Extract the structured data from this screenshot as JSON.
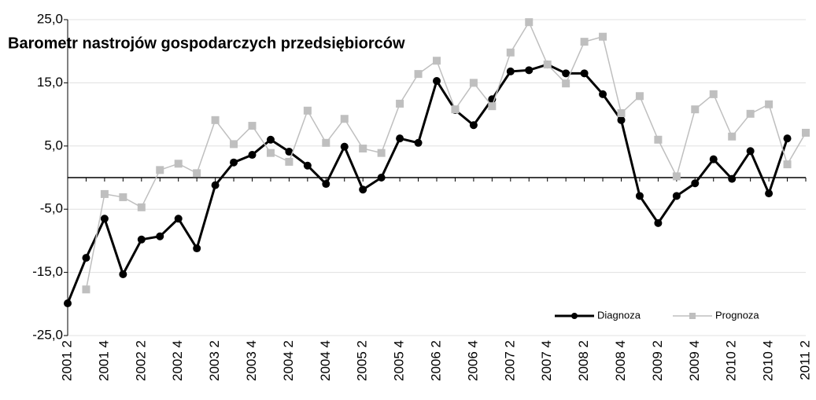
{
  "chart_data": {
    "type": "line",
    "title": "Barometr nastrojów gospodarczych przedsiębiorców",
    "categories": [
      "2001 2",
      null,
      "2001 4",
      null,
      "2002 2",
      null,
      "2002 4",
      null,
      "2003 2",
      null,
      "2003 4",
      null,
      "2004 2",
      null,
      "2004 4",
      null,
      "2005 2",
      null,
      "2005 4",
      null,
      "2006 2",
      null,
      "2006 4",
      null,
      "2007 2",
      null,
      "2007 4",
      null,
      "2008 2",
      null,
      "2008 4",
      null,
      "2009 2",
      null,
      "2009 4",
      null,
      "2010 2",
      null,
      "2010 4",
      null,
      "2011 2"
    ],
    "series": [
      {
        "name": "Diagnoza",
        "color": "#000000",
        "values": [
          -19.9,
          -12.7,
          -6.5,
          -15.3,
          -9.8,
          -9.3,
          -6.5,
          -11.2,
          -1.2,
          2.4,
          3.6,
          6.0,
          4.1,
          1.9,
          -1.0,
          4.9,
          -1.9,
          0.0,
          6.2,
          5.5,
          15.3,
          10.7,
          8.3,
          12.4,
          16.8,
          17.0,
          17.9,
          16.5,
          16.5,
          13.2,
          9.1,
          -2.9,
          -7.2,
          -2.9,
          -0.9,
          2.9,
          -0.2,
          4.2,
          -2.5,
          6.2,
          null
        ]
      },
      {
        "name": "Prognoza",
        "color": "#bfbfbf",
        "values": [
          null,
          -17.7,
          -2.6,
          -3.1,
          -4.7,
          1.2,
          2.2,
          0.7,
          9.1,
          5.3,
          8.2,
          3.9,
          2.5,
          10.6,
          5.5,
          9.3,
          4.6,
          3.9,
          11.7,
          16.4,
          18.5,
          10.8,
          15.0,
          11.3,
          19.8,
          24.6,
          17.9,
          14.9,
          21.5,
          22.3,
          10.2,
          12.9,
          6.0,
          0.2,
          10.8,
          13.2,
          6.5,
          10.1,
          11.6,
          2.1,
          7.1
        ]
      }
    ],
    "ylim": [
      -25,
      25
    ],
    "yticks": [
      {
        "value": -25,
        "label": "-25,0"
      },
      {
        "value": -15,
        "label": "-15,0"
      },
      {
        "value": -5,
        "label": "-5,0"
      },
      {
        "value": 5,
        "label": "5,0"
      },
      {
        "value": 15,
        "label": "15,0"
      },
      {
        "value": 25,
        "label": "25,0"
      }
    ],
    "grid": true,
    "legend": "lower right"
  }
}
